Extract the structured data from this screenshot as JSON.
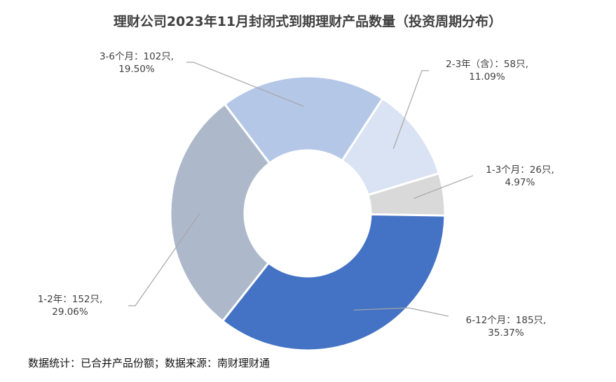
{
  "chart_data": {
    "type": "donut",
    "title": "理财公司2023年11月封闭式到期理财产品数量（投资周期分布）",
    "slices": [
      {
        "name": "1-3个月",
        "label": "1-3个月：26只,",
        "percent_label": "4.97%",
        "value": 26,
        "percent": 4.97,
        "color": "#d9d9d9"
      },
      {
        "name": "6-12个月",
        "label": "6-12个月：185只,",
        "percent_label": "35.37%",
        "value": 185,
        "percent": 35.37,
        "color": "#4472c4"
      },
      {
        "name": "1-2年",
        "label": "1-2年：152只,",
        "percent_label": "29.06%",
        "value": 152,
        "percent": 29.06,
        "color": "#adb9ca"
      },
      {
        "name": "3-6个月",
        "label": "3-6个月：102只,",
        "percent_label": "19.50%",
        "value": 102,
        "percent": 19.5,
        "color": "#b4c7e7"
      },
      {
        "name": "2-3年（含）",
        "label": "2-3年（含）：58只,",
        "percent_label": "11.09%",
        "value": 58,
        "percent": 11.09,
        "color": "#dae3f3"
      }
    ],
    "legend": "none"
  },
  "footer": "数据统计：已合并产品份额；数据来源：南财理财通"
}
